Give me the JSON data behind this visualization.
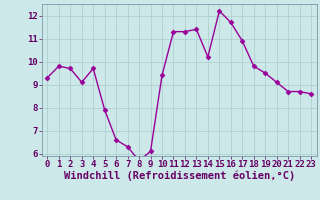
{
  "x": [
    0,
    1,
    2,
    3,
    4,
    5,
    6,
    7,
    8,
    9,
    10,
    11,
    12,
    13,
    14,
    15,
    16,
    17,
    18,
    19,
    20,
    21,
    22,
    23
  ],
  "y": [
    9.3,
    9.8,
    9.7,
    9.1,
    9.7,
    7.9,
    6.6,
    6.3,
    5.7,
    6.1,
    9.4,
    11.3,
    11.3,
    11.4,
    10.2,
    12.2,
    11.7,
    10.9,
    9.8,
    9.5,
    9.1,
    8.7,
    8.7,
    8.6
  ],
  "color": "#990099",
  "bg_color": "#cce8e8",
  "grid_color": "#aacccc",
  "xlabel": "Windchill (Refroidissement éolien,°C)",
  "ylim": [
    5.9,
    12.5
  ],
  "xlim": [
    -0.5,
    23.5
  ],
  "yticks": [
    6,
    7,
    8,
    9,
    10,
    11,
    12
  ],
  "xticks": [
    0,
    1,
    2,
    3,
    4,
    5,
    6,
    7,
    8,
    9,
    10,
    11,
    12,
    13,
    14,
    15,
    16,
    17,
    18,
    19,
    20,
    21,
    22,
    23
  ],
  "marker": "D",
  "markersize": 2.5,
  "linewidth": 1.0,
  "xlabel_fontsize": 7.5,
  "tick_fontsize": 6.5
}
